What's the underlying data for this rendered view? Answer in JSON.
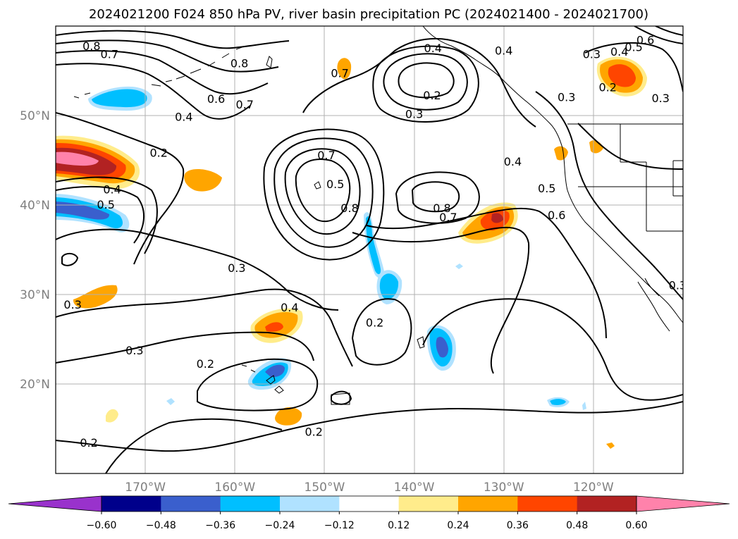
{
  "title": "2024021200 F024 850 hPa PV, river basin precipitation PC (2024021400 - 2024021700)",
  "map": {
    "lon_range": [
      -180,
      -110
    ],
    "lat_range": [
      10,
      60
    ],
    "lat_ticks": [
      {
        "value": 20,
        "label": "20°N"
      },
      {
        "value": 30,
        "label": "30°N"
      },
      {
        "value": 40,
        "label": "40°N"
      },
      {
        "value": 50,
        "label": "50°N"
      }
    ],
    "lon_ticks": [
      {
        "value": -170,
        "label": "170°W"
      },
      {
        "value": -160,
        "label": "160°W"
      },
      {
        "value": -150,
        "label": "150°W"
      },
      {
        "value": -140,
        "label": "140°W"
      },
      {
        "value": -130,
        "label": "130°W"
      },
      {
        "value": -120,
        "label": "120°W"
      }
    ],
    "grid": true,
    "contour_labels": [
      {
        "text": "0.8",
        "lon": -176.0,
        "lat": 57.7
      },
      {
        "text": "0.7",
        "lon": -174.0,
        "lat": 56.8
      },
      {
        "text": "0.8",
        "lon": -159.5,
        "lat": 55.8
      },
      {
        "text": "0.7",
        "lon": -148.3,
        "lat": 54.7
      },
      {
        "text": "0.6",
        "lon": -162.1,
        "lat": 51.8
      },
      {
        "text": "0.7",
        "lon": -158.9,
        "lat": 51.2
      },
      {
        "text": "0.4",
        "lon": -165.7,
        "lat": 49.8
      },
      {
        "text": "0.2",
        "lon": -168.5,
        "lat": 45.8
      },
      {
        "text": "0.4",
        "lon": -137.9,
        "lat": 57.5
      },
      {
        "text": "0.2",
        "lon": -138.0,
        "lat": 52.2
      },
      {
        "text": "0.3",
        "lon": -140.0,
        "lat": 50.1
      },
      {
        "text": "0.4",
        "lon": -130.0,
        "lat": 57.2
      },
      {
        "text": "0.7",
        "lon": -149.8,
        "lat": 45.5
      },
      {
        "text": "0.5",
        "lon": -148.8,
        "lat": 42.3
      },
      {
        "text": "0.8",
        "lon": -147.2,
        "lat": 39.6
      },
      {
        "text": "0.8",
        "lon": -136.9,
        "lat": 39.6
      },
      {
        "text": "0.7",
        "lon": -136.2,
        "lat": 38.6
      },
      {
        "text": "0.4",
        "lon": -129.0,
        "lat": 44.8
      },
      {
        "text": "0.5",
        "lon": -125.2,
        "lat": 41.8
      },
      {
        "text": "0.6",
        "lon": -124.1,
        "lat": 38.8
      },
      {
        "text": "0.3",
        "lon": -123.0,
        "lat": 52.0
      },
      {
        "text": "0.3",
        "lon": -120.2,
        "lat": 56.8
      },
      {
        "text": "0.2",
        "lon": -118.4,
        "lat": 53.1
      },
      {
        "text": "0.3",
        "lon": -112.5,
        "lat": 51.9
      },
      {
        "text": "0.4",
        "lon": -117.1,
        "lat": 57.1
      },
      {
        "text": "0.5",
        "lon": -115.5,
        "lat": 57.6
      },
      {
        "text": "0.6",
        "lon": -114.2,
        "lat": 58.4
      },
      {
        "text": "0.4",
        "lon": -173.7,
        "lat": 41.7
      },
      {
        "text": "0.5",
        "lon": -174.4,
        "lat": 40.0
      },
      {
        "text": "0.3",
        "lon": -159.8,
        "lat": 32.9
      },
      {
        "text": "0.3",
        "lon": -178.1,
        "lat": 28.8
      },
      {
        "text": "0.4",
        "lon": -153.9,
        "lat": 28.5
      },
      {
        "text": "0.2",
        "lon": -144.4,
        "lat": 26.8
      },
      {
        "text": "0.3",
        "lon": -171.2,
        "lat": 23.7
      },
      {
        "text": "0.2",
        "lon": -163.3,
        "lat": 22.2
      },
      {
        "text": "0.2",
        "lon": -176.3,
        "lat": 13.4
      },
      {
        "text": "0.2",
        "lon": -151.2,
        "lat": 14.6
      },
      {
        "text": "0.3",
        "lon": -110.6,
        "lat": 31.0
      }
    ]
  },
  "colorbar": {
    "tick_labels": [
      "−0.60",
      "−0.48",
      "−0.36",
      "−0.24",
      "−0.12",
      "0.12",
      "0.24",
      "0.36",
      "0.48",
      "0.60"
    ],
    "colors": [
      "#9932cc",
      "#00008b",
      "#3a5fcd",
      "#00bfff",
      "#b0e2ff",
      "#ffffff",
      "#ffec8b",
      "#ffa500",
      "#ff4500",
      "#b22222",
      "#ff82ab"
    ]
  },
  "features": {
    "contours_hint": "potential vorticity isolines",
    "shading_hint": "precipitation principal component"
  }
}
